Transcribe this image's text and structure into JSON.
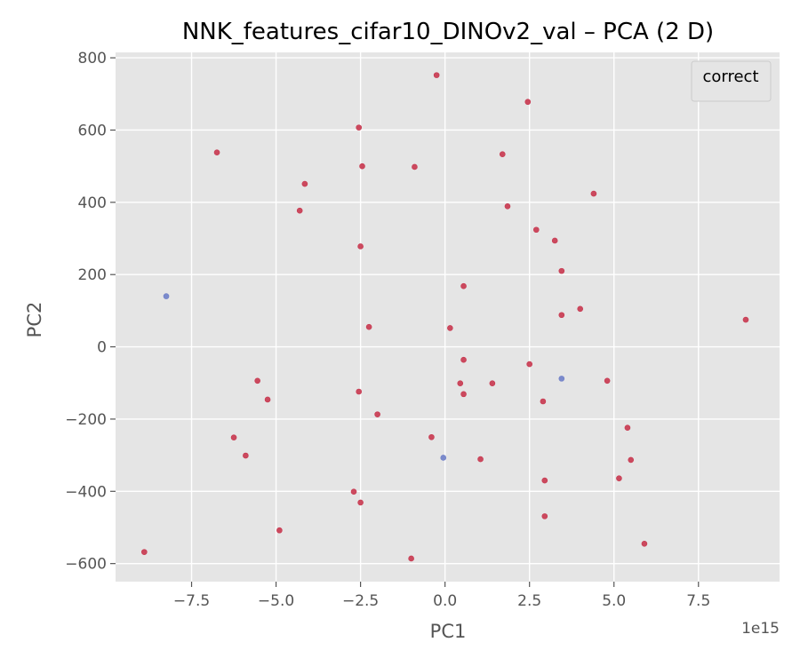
{
  "chart_data": {
    "type": "scatter",
    "title": "NNK_features_cifar10_DINOv2_val – PCA (2 D)",
    "xlabel": "PC1",
    "ylabel": "PC2",
    "x_offset_label": "1e15",
    "xlim": [
      -9.75,
      9.9
    ],
    "ylim": [
      -650,
      815
    ],
    "x_ticks": [
      -7.5,
      -5.0,
      -2.5,
      0.0,
      2.5,
      5.0,
      7.5
    ],
    "x_tick_labels": [
      "−7.5",
      "−5.0",
      "−2.5",
      "0.0",
      "2.5",
      "5.0",
      "7.5"
    ],
    "y_ticks": [
      -600,
      -400,
      -200,
      0,
      200,
      400,
      600,
      800
    ],
    "y_tick_labels": [
      "−600",
      "−400",
      "−200",
      "0",
      "200",
      "400",
      "600",
      "800"
    ],
    "grid": true,
    "legend": {
      "title": "correct",
      "placement": "top-right",
      "entries": []
    },
    "colors": {
      "red": "#c8374f",
      "blue": "#6f7fc8",
      "background": "#e5e5e5",
      "grid": "#ffffff"
    },
    "series": [
      {
        "color": "#c8374f",
        "points": [
          [
            -0.25,
            752
          ],
          [
            2.45,
            678
          ],
          [
            -2.55,
            607
          ],
          [
            -6.75,
            538
          ],
          [
            1.7,
            533
          ],
          [
            -2.45,
            500
          ],
          [
            -0.9,
            498
          ],
          [
            -4.15,
            451
          ],
          [
            4.4,
            424
          ],
          [
            1.85,
            389
          ],
          [
            -4.3,
            377
          ],
          [
            2.7,
            324
          ],
          [
            3.25,
            294
          ],
          [
            -2.5,
            278
          ],
          [
            3.45,
            210
          ],
          [
            0.55,
            168
          ],
          [
            4.0,
            105
          ],
          [
            3.45,
            88
          ],
          [
            8.9,
            75
          ],
          [
            -2.25,
            55
          ],
          [
            0.15,
            52
          ],
          [
            0.55,
            -36
          ],
          [
            2.5,
            -48
          ],
          [
            4.8,
            -94
          ],
          [
            -5.55,
            -94
          ],
          [
            0.45,
            -101
          ],
          [
            1.4,
            -101
          ],
          [
            -2.55,
            -124
          ],
          [
            0.55,
            -131
          ],
          [
            -5.25,
            -146
          ],
          [
            2.9,
            -151
          ],
          [
            -2.0,
            -187
          ],
          [
            5.4,
            -224
          ],
          [
            -6.25,
            -251
          ],
          [
            -0.4,
            -250
          ],
          [
            -5.9,
            -301
          ],
          [
            1.05,
            -311
          ],
          [
            5.5,
            -313
          ],
          [
            5.15,
            -364
          ],
          [
            2.95,
            -370
          ],
          [
            -2.7,
            -401
          ],
          [
            -2.5,
            -431
          ],
          [
            2.95,
            -469
          ],
          [
            -4.9,
            -508
          ],
          [
            5.9,
            -545
          ],
          [
            -8.9,
            -568
          ],
          [
            -1.0,
            -586
          ]
        ]
      },
      {
        "color": "#6f7fc8",
        "points": [
          [
            -8.25,
            140
          ],
          [
            3.45,
            -88
          ],
          [
            -0.05,
            -307
          ]
        ]
      }
    ]
  }
}
